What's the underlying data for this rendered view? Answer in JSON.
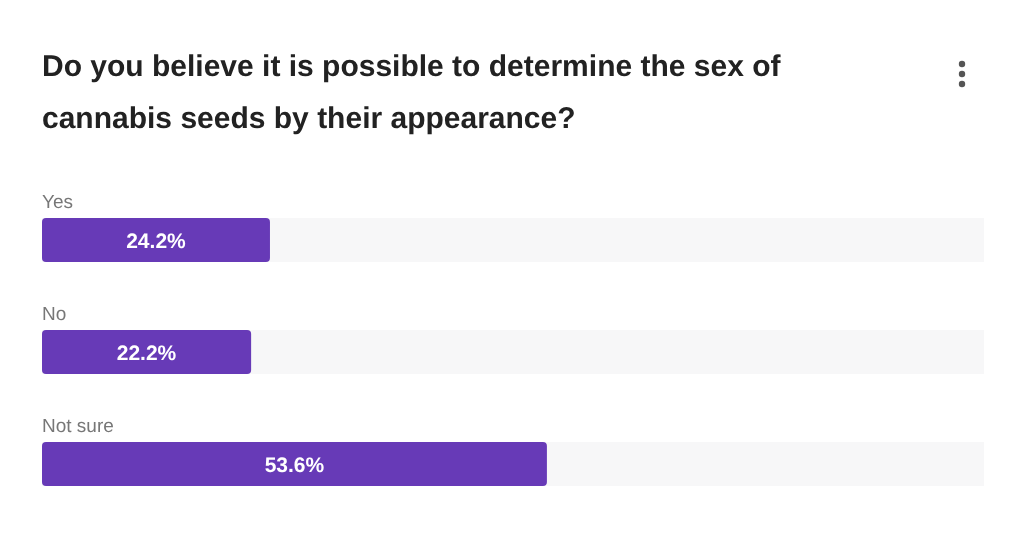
{
  "chart_data": {
    "type": "bar",
    "orientation": "horizontal",
    "title": "Do you believe it is possible to determine the sex of cannabis seeds by their appearance?",
    "categories": [
      "Yes",
      "No",
      "Not sure"
    ],
    "values": [
      24.2,
      22.2,
      53.6
    ],
    "value_labels": [
      "24.2%",
      "22.2%",
      "53.6%"
    ],
    "color": "#673ab7",
    "xlim": [
      0,
      100
    ]
  }
}
